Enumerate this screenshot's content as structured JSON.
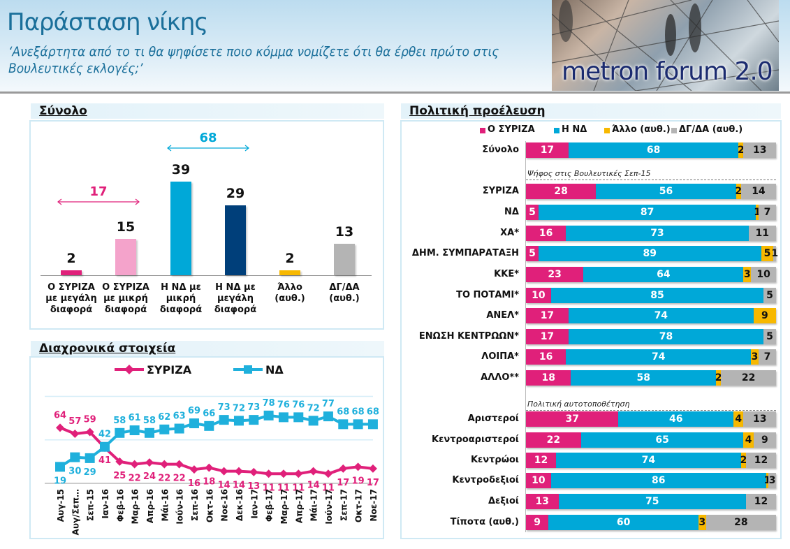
{
  "header": {
    "title": "Παράσταση νίκης",
    "subtitle": "‘Ανεξάρτητα από το τι θα ψηφίσετε ποιο κόμμα νομίζετε ότι θα έρθει πρώτο στις Βουλευτικές εκλογές;’",
    "logo_text": "metron forum 2.0"
  },
  "colors": {
    "syriza": "#e0207a",
    "syriza_light": "#f4a3cb",
    "nd": "#00a8d8",
    "nd_dark": "#003f7a",
    "other": "#f7b800",
    "dk": "#b4b4b4"
  },
  "chart_data": [
    {
      "type": "bar",
      "title": "Σύνολο",
      "categories": [
        "Ο ΣΥΡΙΖΑ με μεγάλη διαφορά",
        "Ο ΣΥΡΙΖΑ με μικρή διαφορά",
        "Η ΝΔ με μικρή διαφορά",
        "Η ΝΔ με μεγάλη διαφορά",
        "Άλλο (αυθ.)",
        "ΔΓ/ΔΑ (αυθ.)"
      ],
      "values": [
        2,
        15,
        39,
        29,
        2,
        13
      ],
      "colors": [
        "#e0207a",
        "#f4a3cb",
        "#00a8d8",
        "#003f7a",
        "#f7b800",
        "#b4b4b4"
      ],
      "annotations": [
        {
          "text": "17",
          "spans": [
            0,
            1
          ],
          "color": "#e0207a"
        },
        {
          "text": "68",
          "spans": [
            2,
            3
          ],
          "color": "#00a8d8"
        }
      ]
    },
    {
      "type": "line",
      "title": "Διαχρονικά στοιχεία",
      "ylim": [
        0,
        100
      ],
      "grid": true,
      "legend": "top",
      "x": [
        "Αυγ-15",
        "Αυγ/Σεπ...",
        "Σεπ-15",
        "Ιαν-16",
        "Φεβ-16",
        "Μαρ-16",
        "Απρ-16",
        "Μάι-16",
        "Ιούν-16",
        "Σεπ-16",
        "Οκτ-16",
        "Νοε-16",
        "Δεκ-16",
        "Ιαν-17",
        "Φεβ-17",
        "Μαρ-17",
        "Απρ-17",
        "Μάι-17",
        "Ιούν-17",
        "Σεπ-17",
        "Οκτ-17",
        "Νοε-17"
      ],
      "series": [
        {
          "name": "ΣΥΡΙΖΑ",
          "color": "#e0207a",
          "marker": "diamond",
          "values": [
            64,
            57,
            59,
            41,
            25,
            22,
            24,
            22,
            22,
            16,
            18,
            14,
            14,
            13,
            11,
            11,
            11,
            14,
            11,
            17,
            19,
            17
          ]
        },
        {
          "name": "ΝΔ",
          "color": "#1fb0dc",
          "marker": "square",
          "values": [
            19,
            30,
            29,
            42,
            58,
            61,
            58,
            62,
            63,
            69,
            66,
            73,
            72,
            73,
            78,
            76,
            76,
            72,
            77,
            68,
            68,
            68
          ]
        }
      ]
    },
    {
      "type": "bar",
      "orientation": "horizontal",
      "stacked": true,
      "title": "Πολιτική προέλευση",
      "legend": "top",
      "series_names": [
        "Ο ΣΥΡΙΖΑ",
        "Η ΝΔ",
        "Άλλο (αυθ.)",
        "ΔΓ/ΔΑ (αυθ.)"
      ],
      "group_labels": [
        "Ψήφος στις Βουλευτικές Σεπ-15",
        "Πολιτική αυτοτοποθέτηση"
      ],
      "rows": [
        {
          "label": "Σύνολο",
          "values": [
            17,
            68,
            2,
            13
          ]
        },
        {
          "label": "ΣΥΡΙΖΑ",
          "values": [
            28,
            56,
            2,
            14
          ]
        },
        {
          "label": "ΝΔ",
          "values": [
            5,
            87,
            1,
            7
          ]
        },
        {
          "label": "ΧΑ*",
          "values": [
            16,
            73,
            0,
            11
          ]
        },
        {
          "label": "ΔΗΜ. ΣΥΜΠΑΡΑΤΑΞΗ",
          "values": [
            5,
            89,
            5,
            1
          ]
        },
        {
          "label": "ΚΚΕ*",
          "values": [
            23,
            64,
            3,
            10
          ]
        },
        {
          "label": "ΤΟ ΠΟΤΑΜΙ*",
          "values": [
            10,
            85,
            0,
            5
          ]
        },
        {
          "label": "ΑΝΕΛ*",
          "values": [
            17,
            74,
            9,
            0
          ]
        },
        {
          "label": "ΕΝΩΣΗ ΚΕΝΤΡΩΩΝ*",
          "values": [
            17,
            78,
            0,
            5
          ]
        },
        {
          "label": "ΛΟΙΠΑ*",
          "values": [
            16,
            74,
            3,
            7
          ]
        },
        {
          "label": "ΑΛΛΟ**",
          "values": [
            18,
            58,
            2,
            22
          ]
        },
        {
          "label": "Αριστεροί",
          "values": [
            37,
            46,
            4,
            13
          ]
        },
        {
          "label": "Κεντροαριστεροί",
          "values": [
            22,
            65,
            4,
            9
          ]
        },
        {
          "label": "Κεντρώοι",
          "values": [
            12,
            74,
            2,
            12
          ]
        },
        {
          "label": "Κεντροδεξιοί",
          "values": [
            10,
            86,
            1,
            3
          ]
        },
        {
          "label": "Δεξιοί",
          "values": [
            13,
            75,
            0,
            12
          ]
        },
        {
          "label": "Τίποτα (αυθ.)",
          "values": [
            9,
            60,
            3,
            28
          ]
        }
      ]
    }
  ]
}
